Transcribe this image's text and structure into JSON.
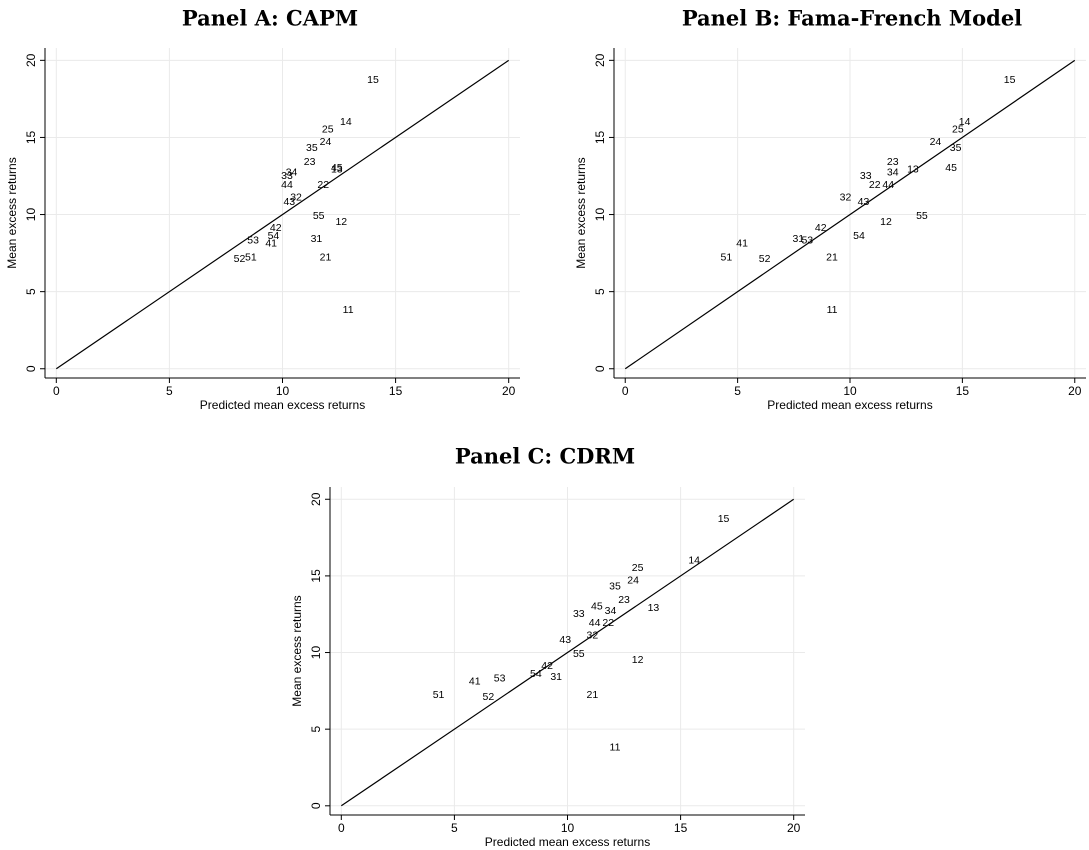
{
  "chart_data": [
    {
      "type": "scatter",
      "title": "Panel A: CAPM",
      "xlabel": "Predicted mean excess returns",
      "ylabel": "Mean excess returns",
      "labels": [
        "15",
        "14",
        "25",
        "24",
        "35",
        "23",
        "45",
        "13",
        "34",
        "33",
        "44",
        "22",
        "32",
        "43",
        "55",
        "12",
        "42",
        "54",
        "53",
        "31",
        "41",
        "21",
        "52",
        "51",
        "11"
      ],
      "x": [
        14.0,
        12.8,
        12.0,
        11.9,
        11.3,
        11.2,
        12.4,
        12.4,
        10.4,
        10.2,
        10.2,
        11.8,
        10.6,
        10.3,
        11.6,
        12.6,
        9.7,
        9.6,
        8.7,
        11.5,
        9.5,
        11.9,
        8.1,
        8.6,
        12.9
      ],
      "values": [
        18.7,
        16.0,
        15.5,
        14.7,
        14.3,
        13.4,
        13.0,
        12.9,
        12.7,
        12.5,
        11.9,
        11.9,
        11.1,
        10.8,
        9.9,
        9.5,
        9.1,
        8.6,
        8.3,
        8.4,
        8.1,
        7.2,
        7.1,
        7.2,
        3.8
      ],
      "diagonal": {
        "x": [
          0,
          20
        ],
        "y": [
          0,
          20
        ]
      },
      "xlim": [
        -0.5,
        20.5
      ],
      "ylim": [
        -0.6,
        20.8
      ],
      "xticks": [
        0,
        5,
        10,
        15,
        20
      ],
      "yticks": [
        0,
        5,
        10,
        15,
        20
      ],
      "grid": true
    },
    {
      "type": "scatter",
      "title": "Panel B: Fama-French Model",
      "xlabel": "Predicted mean excess returns",
      "ylabel": "Mean excess returns",
      "labels": [
        "15",
        "14",
        "25",
        "24",
        "35",
        "23",
        "45",
        "13",
        "34",
        "33",
        "44",
        "22",
        "32",
        "43",
        "55",
        "12",
        "42",
        "54",
        "53",
        "31",
        "41",
        "21",
        "52",
        "51",
        "11"
      ],
      "x": [
        17.1,
        15.1,
        14.8,
        13.8,
        14.7,
        11.9,
        14.5,
        12.8,
        11.9,
        10.7,
        11.7,
        11.1,
        9.8,
        10.6,
        13.2,
        11.6,
        8.7,
        10.4,
        8.1,
        7.7,
        5.2,
        9.2,
        6.2,
        4.5,
        9.2
      ],
      "values": [
        18.7,
        16.0,
        15.5,
        14.7,
        14.3,
        13.4,
        13.0,
        12.9,
        12.7,
        12.5,
        11.9,
        11.9,
        11.1,
        10.8,
        9.9,
        9.5,
        9.1,
        8.6,
        8.3,
        8.4,
        8.1,
        7.2,
        7.1,
        7.2,
        3.8
      ],
      "diagonal": {
        "x": [
          0,
          20
        ],
        "y": [
          0,
          20
        ]
      },
      "xlim": [
        -0.5,
        20.5
      ],
      "ylim": [
        -0.6,
        20.8
      ],
      "xticks": [
        0,
        5,
        10,
        15,
        20
      ],
      "yticks": [
        0,
        5,
        10,
        15,
        20
      ],
      "grid": true
    },
    {
      "type": "scatter",
      "title": "Panel C: CDRM",
      "xlabel": "Predicted mean excess returns",
      "ylabel": "Mean excess returns",
      "labels": [
        "15",
        "14",
        "25",
        "24",
        "35",
        "23",
        "45",
        "13",
        "34",
        "33",
        "44",
        "22",
        "32",
        "43",
        "55",
        "12",
        "42",
        "54",
        "53",
        "31",
        "41",
        "21",
        "52",
        "51",
        "11"
      ],
      "x": [
        16.9,
        15.6,
        13.1,
        12.9,
        12.1,
        12.5,
        11.3,
        13.8,
        11.9,
        10.5,
        11.2,
        11.8,
        11.1,
        9.9,
        10.5,
        13.1,
        9.1,
        8.6,
        7.0,
        9.5,
        5.9,
        11.1,
        6.5,
        4.3,
        12.1
      ],
      "values": [
        18.7,
        16.0,
        15.5,
        14.7,
        14.3,
        13.4,
        13.0,
        12.9,
        12.7,
        12.5,
        11.9,
        11.9,
        11.1,
        10.8,
        9.9,
        9.5,
        9.1,
        8.6,
        8.3,
        8.4,
        8.1,
        7.2,
        7.1,
        7.2,
        3.8
      ],
      "diagonal": {
        "x": [
          0,
          20
        ],
        "y": [
          0,
          20
        ]
      },
      "xlim": [
        -0.5,
        20.5
      ],
      "ylim": [
        -0.6,
        20.8
      ],
      "xticks": [
        0,
        5,
        10,
        15,
        20
      ],
      "yticks": [
        0,
        5,
        10,
        15,
        20
      ],
      "grid": true
    }
  ]
}
